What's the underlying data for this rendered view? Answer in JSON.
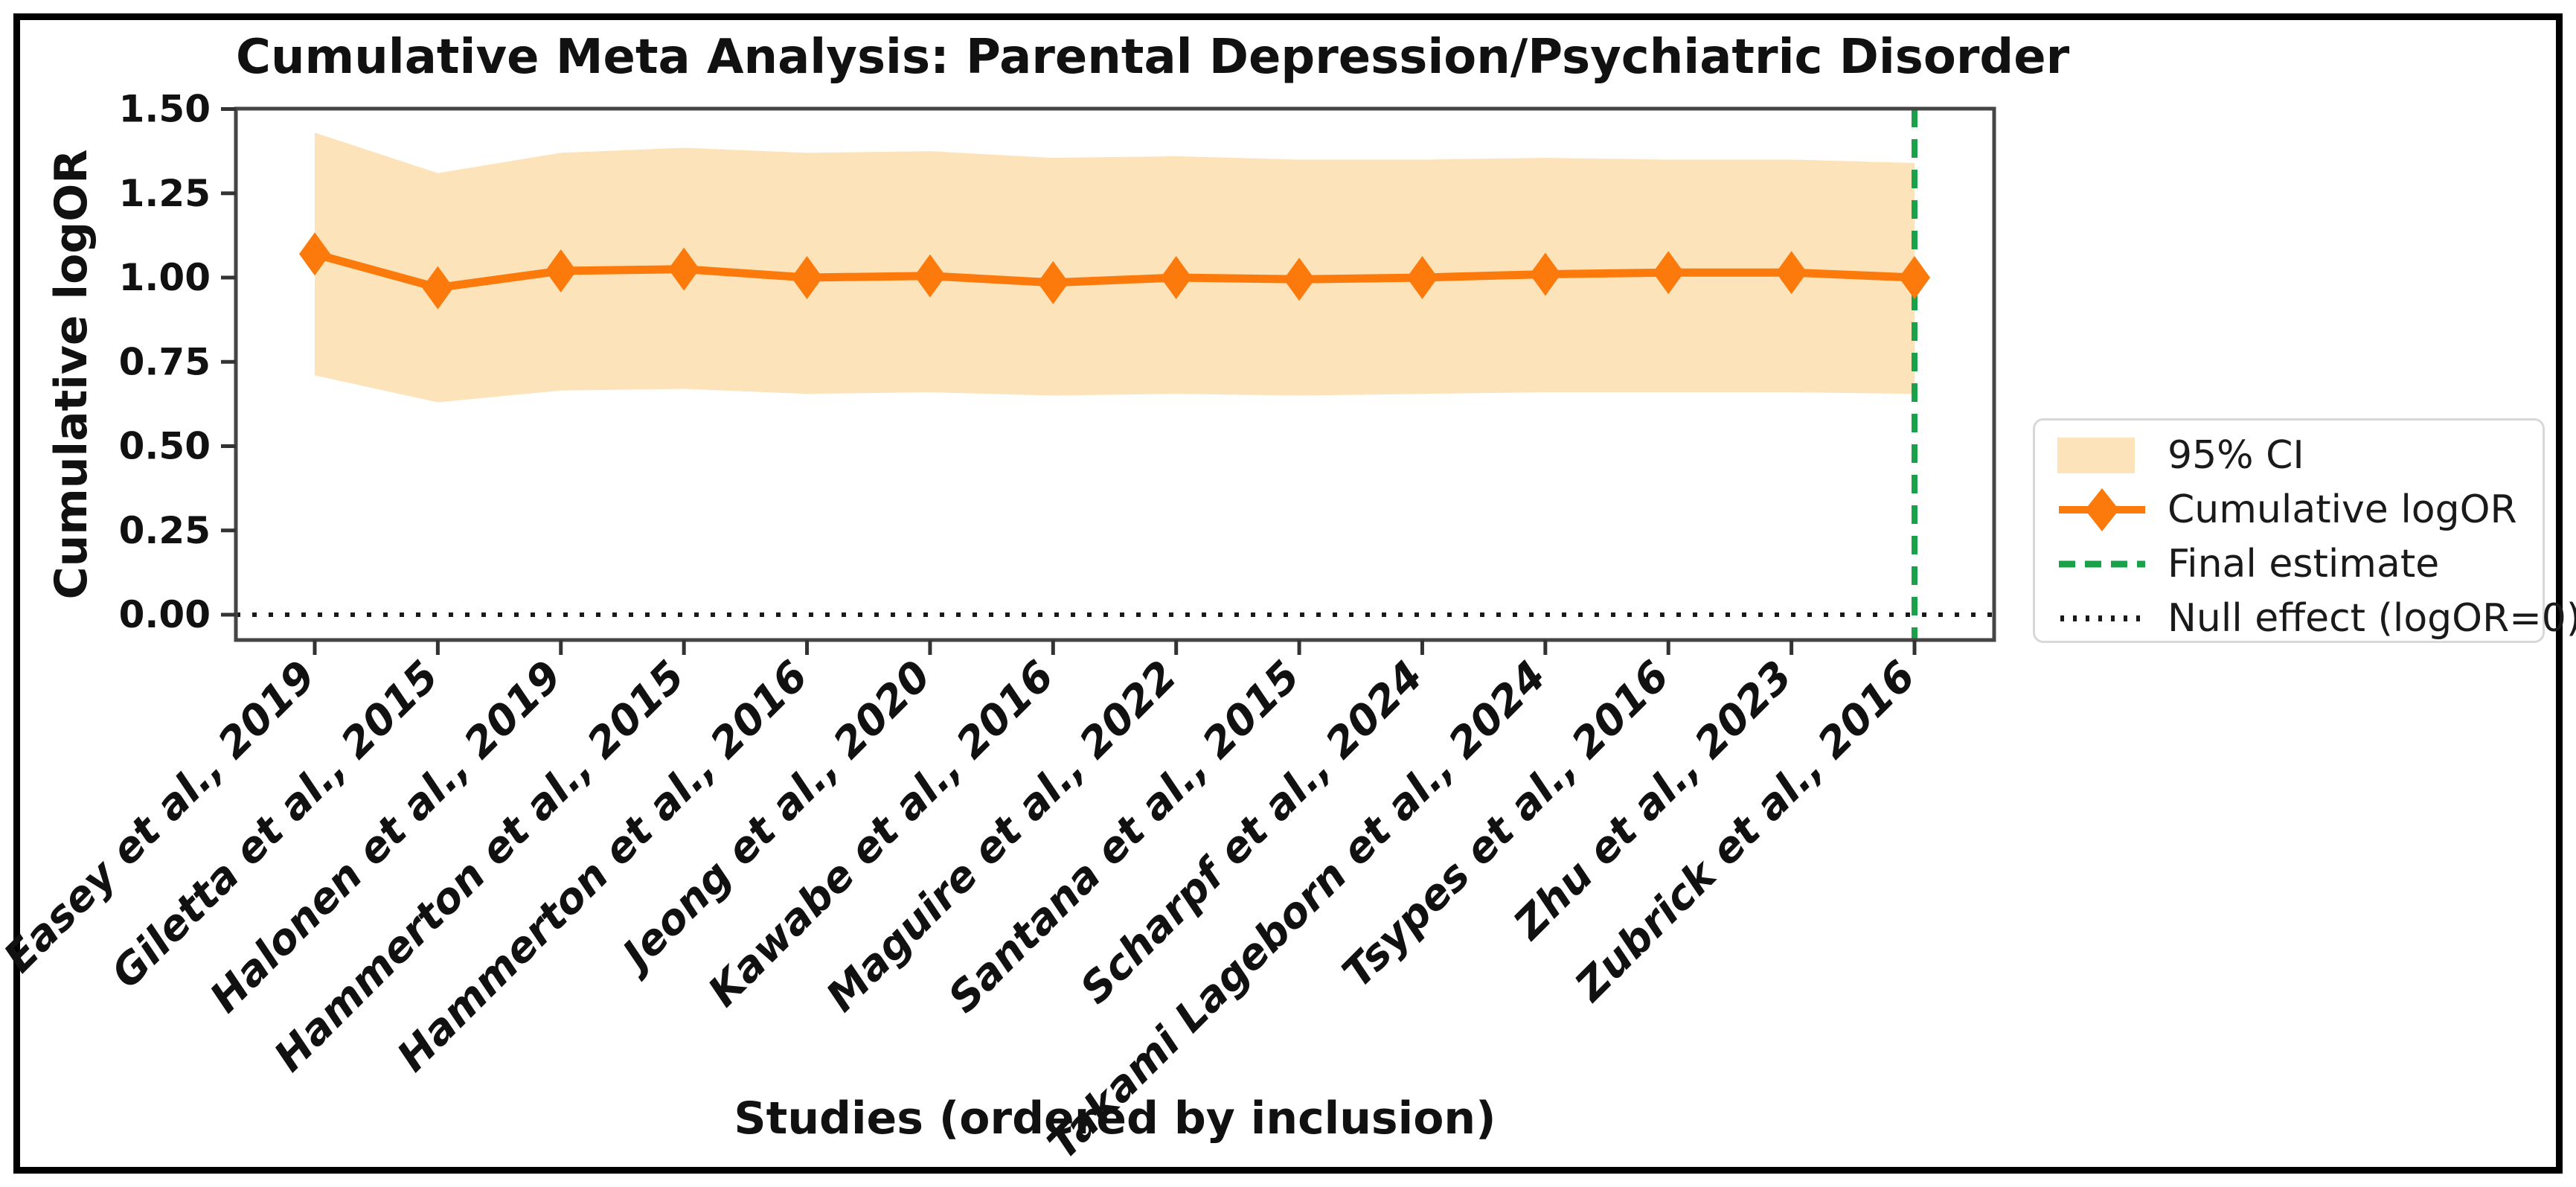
{
  "chart_data": {
    "type": "line",
    "title": "Cumulative Meta Analysis: Parental Depression/Psychiatric Disorder",
    "xlabel": "Studies (ordered by inclusion)",
    "ylabel": "Cumulative logOR",
    "categories": [
      "Easey et al., 2019",
      "Giletta et al., 2015",
      "Halonen et al., 2019",
      "Hammerton et al., 2015",
      "Hammerton et al., 2016",
      "Jeong et al., 2020",
      "Kawabe et al., 2016",
      "Maguire et al., 2022",
      "Santana et al., 2015",
      "Scharpf et al., 2024",
      "Takami Lageborn et al., 2024",
      "Tsypes et al., 2016",
      "Zhu et al., 2023",
      "Zubrick et al., 2016"
    ],
    "series": [
      {
        "name": "Cumulative logOR",
        "values": [
          1.07,
          0.97,
          1.02,
          1.025,
          1.0,
          1.005,
          0.985,
          1.0,
          0.995,
          1.0,
          1.01,
          1.015,
          1.015,
          1.0
        ]
      },
      {
        "name": "95% CI upper",
        "values": [
          1.43,
          1.31,
          1.37,
          1.385,
          1.37,
          1.375,
          1.355,
          1.36,
          1.35,
          1.35,
          1.355,
          1.35,
          1.35,
          1.34
        ]
      },
      {
        "name": "95% CI lower",
        "values": [
          0.71,
          0.63,
          0.665,
          0.67,
          0.655,
          0.66,
          0.65,
          0.655,
          0.65,
          0.655,
          0.66,
          0.66,
          0.66,
          0.655
        ]
      }
    ],
    "ylim": [
      -0.075,
      1.5
    ],
    "ytick_labels": [
      "0.00",
      "0.25",
      "0.50",
      "0.75",
      "1.00",
      "1.25",
      "1.50"
    ],
    "ytick_step": 0.25,
    "null_line_value": 0,
    "final_estimate_category": "Zubrick et al., 2016",
    "grid": false,
    "legend_position": "center-right",
    "legend": [
      {
        "label": "95% CI",
        "type": "patch"
      },
      {
        "label": "Cumulative logOR",
        "type": "line-diamond"
      },
      {
        "label": "Final estimate",
        "type": "dashed-line"
      },
      {
        "label": "Null effect (logOR=0)",
        "type": "dotted-line"
      }
    ],
    "colors": {
      "ci_band": "#fce3ba",
      "line": "#fb7a0b",
      "final_estimate": "#1aa24a",
      "null_line": "#1a1a1a",
      "spine": "#454545",
      "tick": "#333333",
      "text": "#111111",
      "legend_border": "#d8d8d8"
    }
  }
}
